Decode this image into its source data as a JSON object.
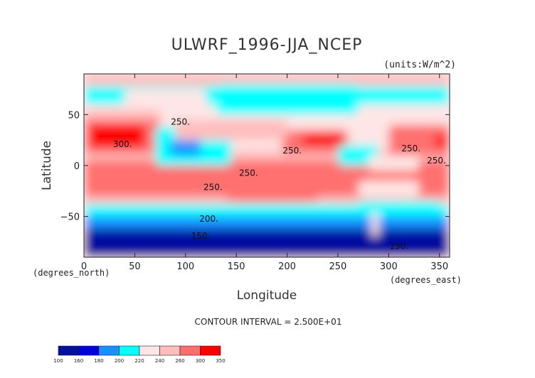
{
  "chart_data": {
    "type": "heatmap",
    "title": "ULWRF_1996-JJA_NCEP",
    "units_label": "(units:W/m^2)",
    "xlabel": "Longitude",
    "ylabel": "Latitude",
    "x_unit_label": "(degrees_east)",
    "y_unit_label": "(degrees_north)",
    "xlim": [
      0,
      360
    ],
    "ylim": [
      -90,
      90
    ],
    "x_ticks": [
      0,
      50,
      100,
      150,
      200,
      250,
      300,
      350
    ],
    "y_ticks": [
      -50,
      0,
      50
    ],
    "contour_interval_label": "CONTOUR INTERVAL = 2.500E+01",
    "colorbar": {
      "levels": [
        100,
        160,
        180,
        200,
        220,
        240,
        260,
        300,
        350
      ],
      "colors": [
        "#0010a0",
        "#0000e0",
        "#1890ff",
        "#00ffff",
        "#ffe6e6",
        "#ffbdbd",
        "#ff6f6f",
        "#ff0000"
      ]
    },
    "contour_labels": [
      {
        "text": "250.",
        "lon": 95,
        "lat": 40
      },
      {
        "text": "300.",
        "lon": 38,
        "lat": 18
      },
      {
        "text": "250.",
        "lon": 205,
        "lat": 12
      },
      {
        "text": "250.",
        "lon": 322,
        "lat": 14
      },
      {
        "text": "250.",
        "lon": 347,
        "lat": 2
      },
      {
        "text": "250.",
        "lon": 162,
        "lat": -10
      },
      {
        "text": "250.",
        "lon": 127,
        "lat": -24
      },
      {
        "text": "200.",
        "lon": 123,
        "lat": -55
      },
      {
        "text": "150.",
        "lon": 115,
        "lat": -72
      },
      {
        "text": "150.",
        "lon": 310,
        "lat": -82
      }
    ],
    "field_regions": [
      {
        "lon": [
          0,
          360
        ],
        "lat": [
          -90,
          90
        ],
        "value": 230
      },
      {
        "lon": [
          0,
          360
        ],
        "lat": [
          -90,
          -62
        ],
        "value": 130
      },
      {
        "lon": [
          0,
          360
        ],
        "lat": [
          -62,
          -50
        ],
        "value": 190
      },
      {
        "lon": [
          0,
          360
        ],
        "lat": [
          -50,
          -38
        ],
        "value": 210
      },
      {
        "lon": [
          0,
          360
        ],
        "lat": [
          -38,
          -30
        ],
        "value": 245
      },
      {
        "lon": [
          0,
          360
        ],
        "lat": [
          -30,
          5
        ],
        "value": 270
      },
      {
        "lon": [
          0,
          360
        ],
        "lat": [
          -20,
          -8
        ],
        "value": 285
      },
      {
        "lon": [
          0,
          360
        ],
        "lat": [
          5,
          15
        ],
        "value": 255
      },
      {
        "lon": [
          0,
          360
        ],
        "lat": [
          50,
          90
        ],
        "value": 235
      },
      {
        "lon": [
          0,
          360
        ],
        "lat": [
          60,
          78
        ],
        "value": 215
      },
      {
        "lon": [
          0,
          360
        ],
        "lat": [
          78,
          90
        ],
        "value": 245
      },
      {
        "lon": [
          0,
          75
        ],
        "lat": [
          12,
          48
        ],
        "value": 285
      },
      {
        "lon": [
          5,
          60
        ],
        "lat": [
          18,
          40
        ],
        "value": 310
      },
      {
        "lon": [
          0,
          75
        ],
        "lat": [
          45,
          55
        ],
        "value": 255
      },
      {
        "lon": [
          195,
          260
        ],
        "lat": [
          12,
          35
        ],
        "value": 285
      },
      {
        "lon": [
          215,
          255
        ],
        "lat": [
          20,
          32
        ],
        "value": 305
      },
      {
        "lon": [
          300,
          360
        ],
        "lat": [
          10,
          40
        ],
        "value": 280
      },
      {
        "lon": [
          345,
          360
        ],
        "lat": [
          18,
          30
        ],
        "value": 310
      },
      {
        "lon": [
          70,
          145
        ],
        "lat": [
          0,
          38
        ],
        "value": 215
      },
      {
        "lon": [
          85,
          115
        ],
        "lat": [
          10,
          25
        ],
        "value": 190
      },
      {
        "lon": [
          250,
          290
        ],
        "lat": [
          0,
          20
        ],
        "value": 215
      },
      {
        "lon": [
          280,
          330
        ],
        "lat": [
          -5,
          10
        ],
        "value": 220
      },
      {
        "lon": [
          130,
          270
        ],
        "lat": [
          50,
          80
        ],
        "value": 210
      },
      {
        "lon": [
          40,
          120
        ],
        "lat": [
          55,
          75
        ],
        "value": 225
      },
      {
        "lon": [
          90,
          200
        ],
        "lat": [
          25,
          45
        ],
        "value": 245
      },
      {
        "lon": [
          270,
          330
        ],
        "lat": [
          -30,
          -15
        ],
        "value": 235
      },
      {
        "lon": [
          270,
          350
        ],
        "lat": [
          -50,
          -35
        ],
        "value": 200
      },
      {
        "lon": [
          283,
          290
        ],
        "lat": [
          -70,
          -45
        ],
        "value": 230
      },
      {
        "lon": [
          140,
          230
        ],
        "lat": [
          -35,
          -28
        ],
        "value": 262
      }
    ]
  }
}
